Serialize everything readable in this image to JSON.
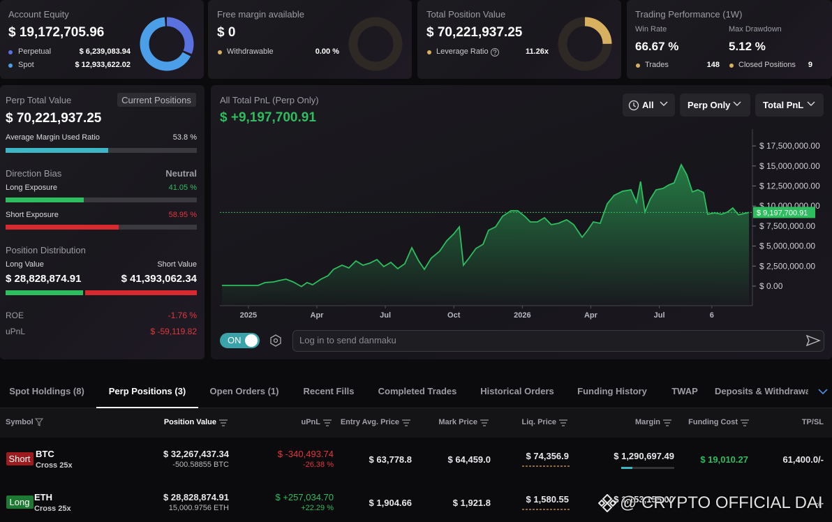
{
  "account_equity": {
    "title": "Account Equity",
    "value": "$ 19,172,705.96",
    "items": [
      {
        "name": "Perpetual",
        "value": 6239083.94,
        "value_label": "$ 6,239,083.94",
        "color": "#5a72e0"
      },
      {
        "name": "Spot",
        "value": 12933622.02,
        "value_label": "$ 12,933,622.02",
        "color": "#4b9fe8"
      }
    ]
  },
  "free_margin": {
    "title": "Free margin available",
    "value": "$ 0",
    "item": {
      "name": "Withdrawable",
      "value_label": "0.00 %"
    }
  },
  "total_position_value": {
    "title": "Total Position Value",
    "value": "$ 70,221,937.25",
    "item": {
      "name": "Leverage Ratio",
      "value_label": "11.26x"
    }
  },
  "trading_performance": {
    "title": "Trading Performance (1W)",
    "win_rate_label": "Win Rate",
    "win_rate": "66.67 %",
    "max_drawdown_label": "Max Drawdown",
    "max_drawdown": "5.12 %",
    "trades_label": "Trades",
    "trades": 148,
    "closed_label": "Closed Positions",
    "closed": 9
  },
  "perp_summary": {
    "title": "Perp Total Value",
    "button": "Current Positions",
    "value": "$ 70,221,937.25",
    "margin_ratio": {
      "label": "Average Margin Used Ratio",
      "value": 53.8,
      "value_label": "53.8 %"
    },
    "direction_bias": {
      "label": "Direction Bias",
      "value": "Neutral",
      "long": {
        "label": "Long Exposure",
        "value": 41.05,
        "value_label": "41.05 %"
      },
      "short": {
        "label": "Short Exposure",
        "value": 58.95,
        "value_label": "58.95 %"
      }
    },
    "distribution": {
      "label": "Position Distribution",
      "long_label": "Long Value",
      "long_value": 28828874.91,
      "long_value_label": "$ 28,828,874.91",
      "short_label": "Short Value",
      "short_value": 41393062.34,
      "short_value_label": "$ 41,393,062.34"
    },
    "roe": {
      "label": "ROE",
      "value": "-1.76 %"
    },
    "upnl": {
      "label": "uPnL",
      "value": "$ -59,119.82"
    }
  },
  "chart_data": {
    "type": "area",
    "title": "All Total PnL (Perp Only)",
    "total": "$ +9,197,700.91",
    "controls": [
      "All",
      "Perp Only",
      "Total PnL"
    ],
    "color": "#2ebd5f",
    "x": [
      -1.16,
      -0.49,
      0.43,
      0.73,
      1.1,
      1.35,
      1.65,
      1.96,
      2.32,
      2.57,
      2.81,
      3.18,
      3.49,
      3.73,
      4.1,
      4.4,
      4.71,
      5.02,
      5.32,
      5.63,
      5.93,
      6.24,
      6.54,
      6.85,
      7.16,
      7.46,
      7.71,
      8.01,
      8.38,
      8.69,
      9.0,
      9.24,
      9.42,
      9.66,
      9.97,
      10.28,
      10.52,
      10.83,
      11.13,
      11.5,
      11.8,
      12.11,
      12.35,
      12.66,
      12.97,
      13.27,
      13.58,
      13.94,
      14.25,
      14.62,
      14.86,
      15.11,
      15.41,
      15.72,
      16.02,
      16.39,
      16.76,
      17.0,
      17.18,
      17.37,
      17.61,
      17.86,
      18.17,
      18.41,
      18.65,
      18.96,
      19.2,
      19.45,
      19.69,
      19.94,
      20.12,
      20.43,
      20.73,
      20.98,
      21.22,
      21.47,
      21.71,
      21.93
    ],
    "values": [
      90000,
      90000,
      90000,
      440000,
      520000,
      700000,
      870000,
      520000,
      -50000,
      440000,
      170000,
      870000,
      1310000,
      2090000,
      2610000,
      2260000,
      3140000,
      2610000,
      2870000,
      3310000,
      2440000,
      2960000,
      2180000,
      2790000,
      4790000,
      3140000,
      2090000,
      3480000,
      4360000,
      5660000,
      6530000,
      7400000,
      2610000,
      3480000,
      4700000,
      5230000,
      6970000,
      7400000,
      8710000,
      9410000,
      9410000,
      8710000,
      8010000,
      8010000,
      8540000,
      7670000,
      7840000,
      8280000,
      7670000,
      6100000,
      6970000,
      8010000,
      7840000,
      10280000,
      11320000,
      11850000,
      12020000,
      10450000,
      13070000,
      9230000,
      10890000,
      12020000,
      12200000,
      12630000,
      12890000,
      15160000,
      13940000,
      11760000,
      12020000,
      11670000,
      8970000,
      9150000,
      8970000,
      9230000,
      9760000,
      8890000,
      9060000,
      9197700.91
    ],
    "current_value": 9197700.91,
    "current_value_label": "$ 9,197,700.91",
    "xlim": [
      -1.25,
      22.08
    ],
    "xticks": [
      {
        "value": 0,
        "label": "2025"
      },
      {
        "value": 3,
        "label": "Apr"
      },
      {
        "value": 6,
        "label": "Jul"
      },
      {
        "value": 9,
        "label": "Oct"
      },
      {
        "value": 12,
        "label": "2026"
      },
      {
        "value": 15,
        "label": "Apr"
      },
      {
        "value": 18,
        "label": "Jul"
      },
      {
        "value": 20.3,
        "label": "6"
      }
    ],
    "ylim": [
      -2440000,
      19600000
    ],
    "yticks": [
      {
        "value": 0,
        "label": "$ 0.00"
      },
      {
        "value": 2500000,
        "label": "$ 2,500,000.00"
      },
      {
        "value": 5000000,
        "label": "$ 5,000,000.00"
      },
      {
        "value": 7500000,
        "label": "$ 7,500,000.00"
      },
      {
        "value": 10000000,
        "label": "$ 10,000,000.00"
      },
      {
        "value": 12500000,
        "label": "$ 12,500,000.00"
      },
      {
        "value": 15000000,
        "label": "$ 15,000,000.00"
      },
      {
        "value": 17500000,
        "label": "$ 17,500,000.00"
      }
    ]
  },
  "danmaku": {
    "toggle": "ON",
    "placeholder": "Log in to send danmaku"
  },
  "tabs": [
    "Spot Holdings (8)",
    "Perp Positions (3)",
    "Open Orders (1)",
    "Recent Fills",
    "Completed Trades",
    "Historical Orders",
    "Funding History",
    "TWAP",
    "Deposits & Withdrawals"
  ],
  "table": {
    "headers": [
      "Symbol",
      "Position Value",
      "uPnL",
      "Entry Avg. Price",
      "Mark Price",
      "Liq. Price",
      "Margin",
      "Funding Cost",
      "TP/SL"
    ],
    "rows": [
      {
        "side": "Short",
        "side_color": "#9b1b1f",
        "symbol": "BTC",
        "mode": "Cross 25x",
        "position_value": "$ 32,267,437.34",
        "size": "-500.58855 BTC",
        "upnl": "$ -340,493.74",
        "upnl_pct": "-26.38 %",
        "entry": "$ 63,778.8",
        "mark": "$ 64,459.0",
        "liq": "$ 74,356.9",
        "margin": "$ 1,290,697.49",
        "funding": "$ 19,010.27",
        "tpsl": "61,400.0/-"
      },
      {
        "side": "Long",
        "side_color": "#1e7a33",
        "symbol": "ETH",
        "mode": "Cross 25x",
        "position_value": "$ 28,828,874.91",
        "size": "15,000.9756 ETH",
        "upnl": "$ +257,034.70",
        "upnl_pct": "+22.29 %",
        "entry": "$ 1,904.66",
        "mark": "$ 1,921.8",
        "liq": "$ 1,580.55",
        "margin": "$ 1,153,155.00",
        "tpsl": "-/-"
      }
    ]
  },
  "watermark": "@ CRYPTO OFFICIAL DAI"
}
